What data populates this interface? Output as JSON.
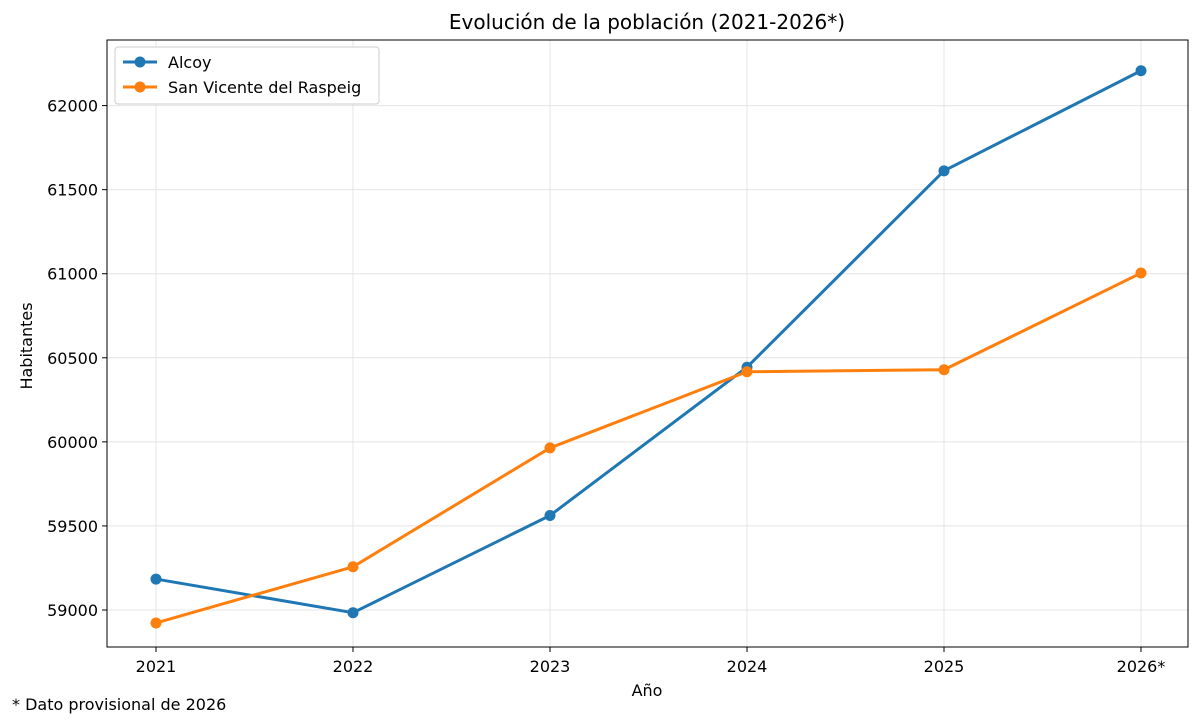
{
  "footnote": "* Dato provisional de 2026",
  "chart_data": {
    "type": "line",
    "title": "Evolución de la población (2021-2026*)",
    "xlabel": "Año",
    "ylabel": "Habitantes",
    "categories": [
      "2021",
      "2022",
      "2023",
      "2024",
      "2025",
      "2026*"
    ],
    "ylim": [
      58780,
      62390
    ],
    "yticks": [
      59000,
      59500,
      60000,
      60500,
      61000,
      61500,
      62000
    ],
    "grid": true,
    "legend_position": "top-left",
    "series": [
      {
        "name": "Alcoy",
        "color": "#1f77b4",
        "values": [
          59184,
          58984,
          59562,
          60444,
          61612,
          62207
        ]
      },
      {
        "name": "San Vicente del Raspeig",
        "color": "#ff7f0e",
        "values": [
          58923,
          59257,
          59964,
          60417,
          60429,
          61004
        ]
      }
    ]
  }
}
